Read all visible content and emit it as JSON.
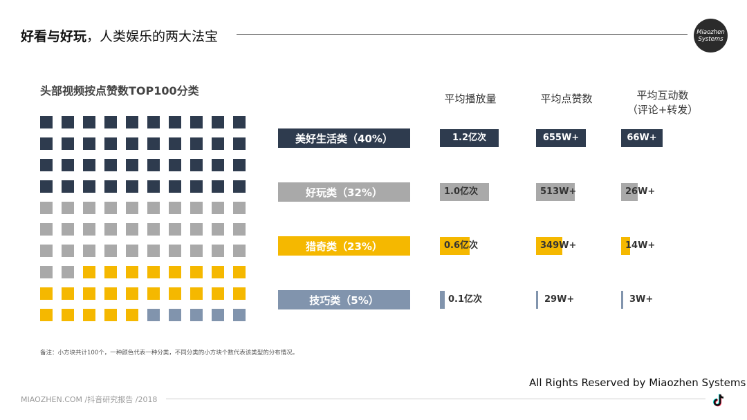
{
  "header": {
    "title_bold": "好看与好玩",
    "title_rest": "，人类娱乐的两大法宝",
    "logo_line1": "Miaozhen",
    "logo_line2": "Systems"
  },
  "chart_data": {
    "type": "table",
    "title": "头部视频按点赞数TOP100分类",
    "columns": [
      "平均播放量",
      "平均点赞数",
      "平均互动数"
    ],
    "column_note": "（评论+转发）",
    "categories": [
      {
        "name": "美好生活类",
        "label": "美好生活类（40%）",
        "percent": 40,
        "color": "#2e3b4e",
        "plays": 1.2,
        "plays_label": "1.2亿次",
        "likes": 655,
        "likes_label": "655W+",
        "interactions": 66,
        "interactions_label": "66W+"
      },
      {
        "name": "好玩类",
        "label": "好玩类（32%）",
        "percent": 32,
        "color": "#a9a9a9",
        "plays": 1.0,
        "plays_label": "1.0亿次",
        "likes": 513,
        "likes_label": "513W+",
        "interactions": 26,
        "interactions_label": "26W+"
      },
      {
        "name": "猎奇类",
        "label": "猎奇类（23%）",
        "percent": 23,
        "color": "#f5b800",
        "plays": 0.6,
        "plays_label": "0.6亿次",
        "likes": 349,
        "likes_label": "349W+",
        "interactions": 14,
        "interactions_label": "14W+"
      },
      {
        "name": "技巧类",
        "label": "技巧类（5%）",
        "percent": 5,
        "color": "#8194ad",
        "plays": 0.1,
        "plays_label": "0.1亿次",
        "likes": 29,
        "likes_label": "29W+",
        "interactions": 3,
        "interactions_label": "3W+"
      }
    ],
    "max": {
      "plays": 1.2,
      "likes": 655,
      "interactions": 66
    }
  },
  "footnote": "备注：小方块共计100个，一种颜色代表一种分类，不同分类的小方块个数代表该类型的分布情况。",
  "rights": "All Rights Reserved by Miaozhen Systems",
  "footer": "MIAOZHEN.COM /抖音研究报告 /2018",
  "icons": {
    "logo": "miaozhen-logo",
    "tiktok": "tiktok-icon"
  }
}
